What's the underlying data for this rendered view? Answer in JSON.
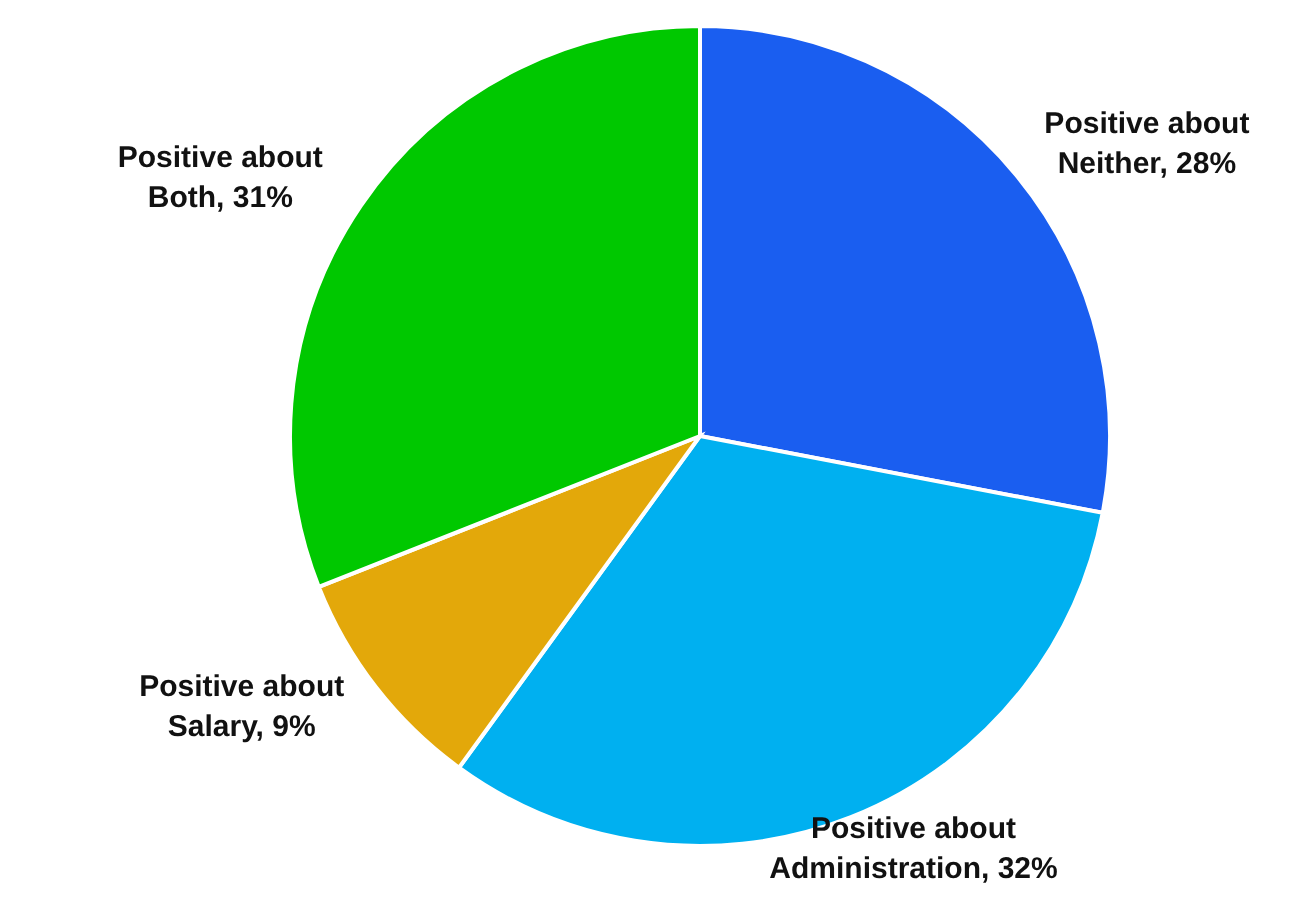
{
  "chart_data": {
    "type": "pie",
    "categories": [
      "Positive about Neither",
      "Positive about Administration",
      "Positive about Salary",
      "Positive about Both"
    ],
    "values": [
      28,
      32,
      9,
      31
    ],
    "colors": [
      "#1a5ef0",
      "#00b0f0",
      "#e3a80a",
      "#00c800"
    ],
    "value_labels": [
      "28%",
      "32%",
      "9%",
      "31%"
    ]
  }
}
